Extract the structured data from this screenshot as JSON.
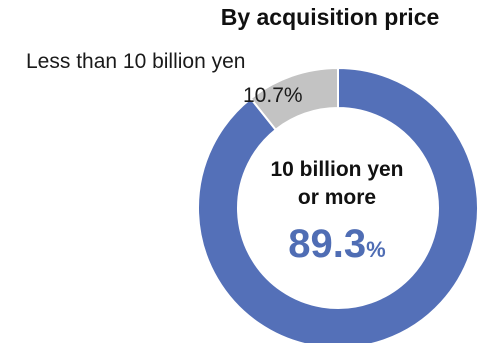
{
  "chart_data": {
    "type": "pie",
    "title": "By acquisition price",
    "slices": [
      {
        "label": "10 billion yen or more",
        "label_line1": "10 billion yen",
        "label_line2": "or more",
        "value": 89.3,
        "value_num": "89.3",
        "unit": "%",
        "color": "#5470b8"
      },
      {
        "label": "Less than 10 billion yen",
        "value": 10.7,
        "value_text": "10.7%",
        "color": "#c3c3c3"
      }
    ]
  }
}
